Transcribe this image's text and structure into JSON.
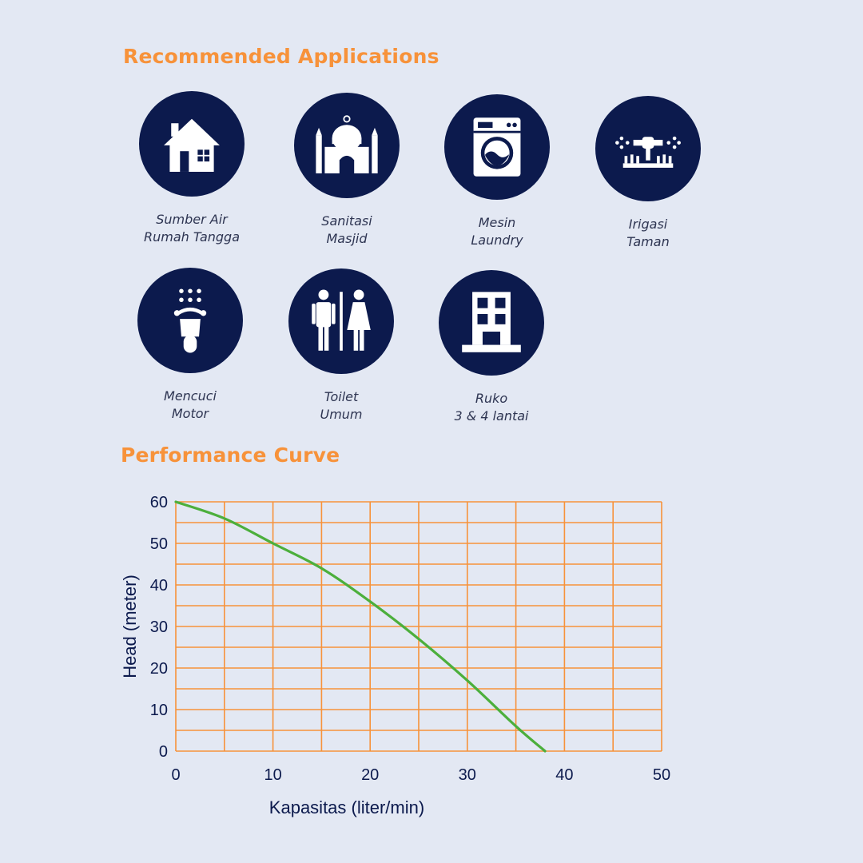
{
  "applications": {
    "title": "Recommended Applications",
    "items": [
      {
        "icon": "house-icon",
        "line1": "Sumber Air",
        "line2": "Rumah Tangga"
      },
      {
        "icon": "mosque-icon",
        "line1": "Sanitasi",
        "line2": "Masjid"
      },
      {
        "icon": "washing-machine-icon",
        "line1": "Mesin",
        "line2": "Laundry"
      },
      {
        "icon": "sprinkler-icon",
        "line1": "Irigasi",
        "line2": "Taman"
      },
      {
        "icon": "motorbike-wash-icon",
        "line1": "Mencuci",
        "line2": "Motor"
      },
      {
        "icon": "restroom-icon",
        "line1": "Toilet",
        "line2": "Umum"
      },
      {
        "icon": "building-icon",
        "line1": "Ruko",
        "line2": "3 & 4 lantai"
      }
    ]
  },
  "performance": {
    "title": "Performance Curve"
  },
  "colors": {
    "accent": "#f7923a",
    "navy": "#0c1a4d",
    "curve": "#4caf3c",
    "background": "#e3e8f3"
  },
  "chart_data": {
    "type": "line",
    "xlabel": "Kapasitas (liter/min)",
    "ylabel": "Head (meter)",
    "xlim": [
      0,
      50
    ],
    "ylim": [
      0,
      60
    ],
    "x_ticks": [
      0,
      10,
      20,
      30,
      40,
      50
    ],
    "y_ticks": [
      0,
      10,
      20,
      30,
      40,
      50,
      60
    ],
    "grid": true,
    "series": [
      {
        "x": [
          0,
          5,
          10,
          15,
          20,
          25,
          30,
          35,
          38
        ],
        "y": [
          60,
          56,
          50,
          44,
          36,
          27,
          17,
          6,
          0
        ]
      }
    ]
  }
}
